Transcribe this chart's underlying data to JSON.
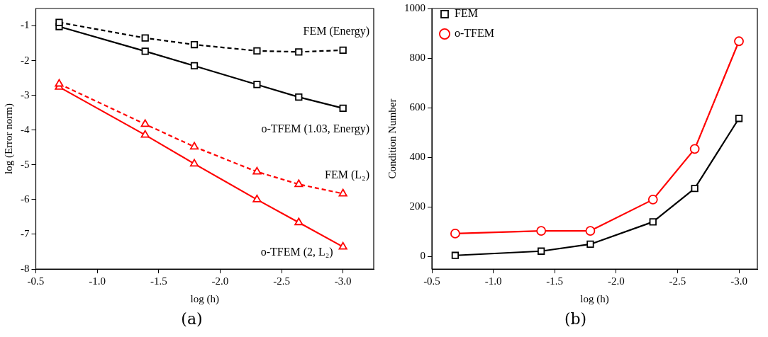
{
  "chart_data": [
    {
      "type": "line",
      "xlabel": "log (h)",
      "ylabel": "log (Error norm)",
      "xlim": [
        -0.5,
        -3.25
      ],
      "ylim": [
        -8,
        -0.5
      ],
      "xticks": [
        {
          "value": -0.5,
          "label": "-0.5"
        },
        {
          "value": -1,
          "label": "-1.0"
        },
        {
          "value": -1.5,
          "label": "-1.5"
        },
        {
          "value": -2,
          "label": "-2.0"
        },
        {
          "value": -2.5,
          "label": "-2.5"
        },
        {
          "value": -3,
          "label": "-3.0"
        }
      ],
      "yticks": [
        -8,
        -7,
        -6,
        -5,
        -4,
        -3,
        -2,
        -1
      ],
      "grid": false,
      "legend": false,
      "x": [
        -0.69,
        -1.39,
        -1.79,
        -2.3,
        -2.64,
        -3.0
      ],
      "series": [
        {
          "name": "FEM (Energy)",
          "color": "#000000",
          "marker": "square",
          "line_style": "dashed",
          "values": [
            -0.9,
            -1.35,
            -1.54,
            -1.72,
            -1.75,
            -1.7
          ]
        },
        {
          "name": "o-TFEM (1.03, Energy)",
          "color": "#000000",
          "marker": "square",
          "line_style": "solid",
          "values": [
            -1.02,
            -1.73,
            -2.15,
            -2.69,
            -3.05,
            -3.37
          ]
        },
        {
          "name": "FEM (L₂)",
          "color": "#ff0000",
          "marker": "triangle",
          "line_style": "dashed",
          "values": [
            -2.67,
            -3.83,
            -4.48,
            -5.2,
            -5.56,
            -5.83
          ]
        },
        {
          "name": "o-TFEM (2, L₂)",
          "color": "#ff0000",
          "marker": "triangle",
          "line_style": "solid",
          "values": [
            -2.76,
            -4.14,
            -4.97,
            -6.0,
            -6.66,
            -7.36
          ]
        }
      ],
      "annotations": [
        "(a)"
      ]
    },
    {
      "type": "line",
      "xlabel": "log (h)",
      "ylabel": "Condition Number",
      "xlim": [
        -0.5,
        -3.15
      ],
      "ylim": [
        -50,
        1000
      ],
      "xticks": [
        {
          "value": -0.5,
          "label": "-0.5"
        },
        {
          "value": -1,
          "label": "-1.0"
        },
        {
          "value": -1.5,
          "label": "-1.5"
        },
        {
          "value": -2,
          "label": "-2.0"
        },
        {
          "value": -2.5,
          "label": "-2.5"
        },
        {
          "value": -3,
          "label": "-3.0"
        }
      ],
      "yticks": [
        0,
        200,
        400,
        600,
        800,
        1000
      ],
      "grid": false,
      "legend": "top left",
      "x": [
        -0.69,
        -1.39,
        -1.79,
        -2.3,
        -2.64,
        -3.0
      ],
      "series": [
        {
          "name": "FEM",
          "color": "#000000",
          "marker": "square",
          "line_style": "solid",
          "values": [
            5,
            22,
            50,
            140,
            275,
            557
          ]
        },
        {
          "name": "o-TFEM",
          "color": "#ff0000",
          "marker": "circle",
          "line_style": "solid",
          "values": [
            93,
            104,
            104,
            230,
            434,
            868
          ]
        }
      ],
      "annotations": [
        "(b)"
      ]
    }
  ]
}
